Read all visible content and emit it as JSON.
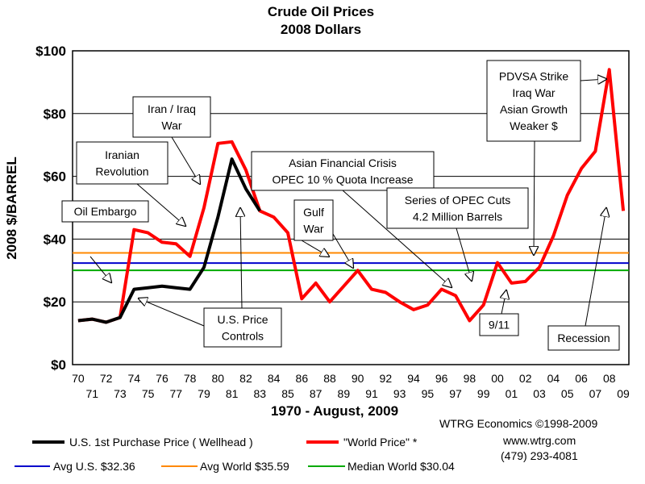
{
  "chart_data": {
    "type": "line",
    "title": "Crude Oil Prices",
    "subtitle": "2008 Dollars",
    "xlabel": "1970 - August, 2009",
    "ylabel": "2008 $/BARREL",
    "ylim": [
      0,
      100
    ],
    "y_ticks": [
      "$0",
      "$20",
      "$40",
      "$60",
      "$80",
      "$100"
    ],
    "x": [
      1970,
      1971,
      1972,
      1973,
      1974,
      1975,
      1976,
      1977,
      1978,
      1979,
      1980,
      1981,
      1982,
      1983,
      1984,
      1985,
      1986,
      1987,
      1988,
      1989,
      1990,
      1991,
      1992,
      1993,
      1994,
      1995,
      1996,
      1997,
      1998,
      1999,
      2000,
      2001,
      2002,
      2003,
      2004,
      2005,
      2006,
      2007,
      2008,
      2009
    ],
    "x_ticks_top": [
      "70",
      "72",
      "74",
      "76",
      "78",
      "80",
      "82",
      "84",
      "86",
      "88",
      "90",
      "92",
      "94",
      "96",
      "98",
      "00",
      "02",
      "04",
      "06",
      "08"
    ],
    "x_ticks_bottom": [
      "71",
      "73",
      "75",
      "77",
      "79",
      "81",
      "83",
      "85",
      "87",
      "89",
      "91",
      "93",
      "95",
      "97",
      "99",
      "01",
      "03",
      "05",
      "07",
      "09"
    ],
    "grid": true,
    "series": [
      {
        "name": "U.S. 1st Purchase Price ( Wellhead )",
        "color": "#000000",
        "x": [
          1970,
          1971,
          1972,
          1973,
          1974,
          1975,
          1976,
          1977,
          1978,
          1979,
          1980,
          1981,
          1982,
          1983
        ],
        "values": [
          14,
          14.5,
          13.5,
          15,
          24,
          24.5,
          25,
          24.5,
          24,
          31,
          47,
          65.5,
          56,
          49
        ]
      },
      {
        "name": "\"World Price\" *",
        "color": "#ff0000",
        "x": [
          1970,
          1971,
          1972,
          1973,
          1974,
          1975,
          1976,
          1977,
          1978,
          1979,
          1980,
          1981,
          1982,
          1983,
          1984,
          1985,
          1986,
          1987,
          1988,
          1989,
          1990,
          1991,
          1992,
          1993,
          1994,
          1995,
          1996,
          1997,
          1998,
          1999,
          2000,
          2001,
          2002,
          2003,
          2004,
          2005,
          2006,
          2007,
          2008,
          2009
        ],
        "values": [
          14,
          14.5,
          13.5,
          15,
          43,
          42,
          39,
          38.5,
          34.5,
          50,
          70.5,
          71,
          62,
          49,
          47,
          42,
          21,
          26,
          20,
          25,
          30,
          24,
          23,
          20,
          17.5,
          19,
          24,
          22,
          14,
          19,
          32.5,
          26,
          26.5,
          31,
          41,
          54,
          62.5,
          68,
          94,
          49
        ]
      }
    ],
    "reference_lines": [
      {
        "name": "Avg U.S. $32.36",
        "value": 32.36,
        "color": "#0000cc"
      },
      {
        "name": "Avg World $35.59",
        "value": 35.59,
        "color": "#ff8800"
      },
      {
        "name": "Median World  $30.04",
        "value": 30.04,
        "color": "#00aa00"
      }
    ],
    "annotations": [
      {
        "lines": [
          "Oil Embargo"
        ]
      },
      {
        "lines": [
          "Iranian",
          "Revolution"
        ]
      },
      {
        "lines": [
          "Iran / Iraq",
          "War"
        ]
      },
      {
        "lines": [
          "Asian Financial Crisis",
          "OPEC 10 % Quota Increase"
        ]
      },
      {
        "lines": [
          "Gulf",
          "War"
        ]
      },
      {
        "lines": [
          "Series of OPEC Cuts",
          "4.2 Million Barrels"
        ]
      },
      {
        "lines": [
          "PDVSA Strike",
          "Iraq War",
          "Asian Growth",
          "Weaker $"
        ]
      },
      {
        "lines": [
          "U.S. Price",
          "Controls"
        ]
      },
      {
        "lines": [
          "9/11"
        ]
      },
      {
        "lines": [
          "Recession"
        ]
      }
    ],
    "legend": {
      "position": "bottom",
      "credits": [
        "WTRG Economics  ©1998-2009",
        "www.wtrg.com",
        "(479) 293-4081"
      ]
    }
  }
}
